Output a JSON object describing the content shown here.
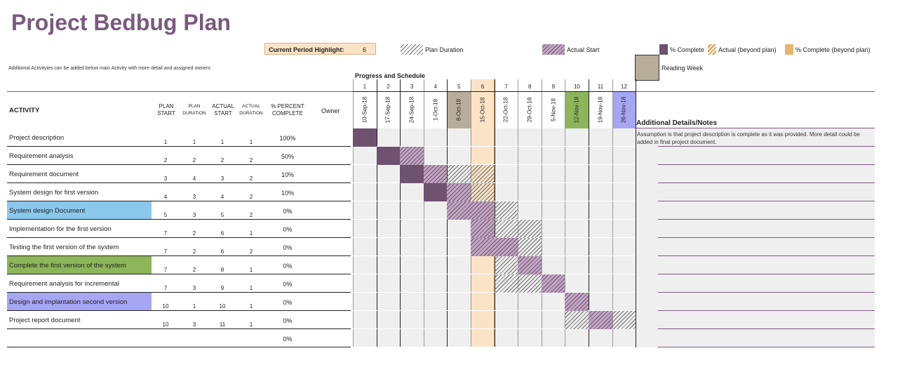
{
  "title": "Project Bedbug Plan",
  "note": "Additional Activityies can be added below main Activity with more detail and assigned owners",
  "current_period": {
    "label": "Current Period Highlight:",
    "value": "6"
  },
  "legend": {
    "plan_duration": "Plan Duration",
    "actual_start": "Actual Start",
    "pct_complete": "% Complete",
    "actual_beyond": "Actual (beyond plan)",
    "pct_beyond": "% Complete (beyond plan)",
    "reading_week": "Reading Week"
  },
  "progress_label": "Progress and Schedule",
  "headers": {
    "activity": "ACTIVITY",
    "plan_start": "PLAN START",
    "plan_duration": "PLAN DURATION",
    "actual_start": "ACTUAL START",
    "actual_duration": "ACTUAL DURATION",
    "pct_complete": "% PERCENT COMPLETE",
    "owner": "Owner",
    "notes": "Additional Details/Notes"
  },
  "weeks": [
    "1",
    "2",
    "3",
    "4",
    "5",
    "6",
    "7",
    "8",
    "9",
    "10",
    "11",
    "12"
  ],
  "dates": [
    "10-Sep-18",
    "17-Sep-18",
    "24-Sep-18",
    "1-Oct-18",
    "8-Oct-18",
    "15-Oct-18",
    "22-Oct-18",
    "29-Oct-18",
    "5-Nov-18",
    "12-Nov-18",
    "19-Nov-18",
    "26-Nov-18"
  ],
  "activities": [
    {
      "name": "Project description",
      "plan_start": "1",
      "plan_dur": "1",
      "act_start": "1",
      "act_dur": "1",
      "pct": "100%"
    },
    {
      "name": "Requirement analysis",
      "plan_start": "2",
      "plan_dur": "2",
      "act_start": "2",
      "act_dur": "2",
      "pct": "50%"
    },
    {
      "name": "Requirement document",
      "plan_start": "3",
      "plan_dur": "4",
      "act_start": "3",
      "act_dur": "2",
      "pct": "10%"
    },
    {
      "name": "System design for first version",
      "plan_start": "4",
      "plan_dur": "3",
      "act_start": "4",
      "act_dur": "2",
      "pct": "10%"
    },
    {
      "name": "System design Document",
      "plan_start": "5",
      "plan_dur": "3",
      "act_start": "5",
      "act_dur": "2",
      "pct": "0%"
    },
    {
      "name": "Implementation for the first version",
      "plan_start": "7",
      "plan_dur": "2",
      "act_start": "6",
      "act_dur": "1",
      "pct": "0%"
    },
    {
      "name": "Testing the first version of the system",
      "plan_start": "7",
      "plan_dur": "2",
      "act_start": "6",
      "act_dur": "2",
      "pct": "0%"
    },
    {
      "name": "Complete the first version of the system",
      "plan_start": "7",
      "plan_dur": "2",
      "act_start": "8",
      "act_dur": "1",
      "pct": "0%"
    },
    {
      "name": "Requirement analysis for incremental",
      "plan_start": "7",
      "plan_dur": "3",
      "act_start": "9",
      "act_dur": "1",
      "pct": "0%"
    },
    {
      "name": "Design and implantation second version",
      "plan_start": "10",
      "plan_dur": "1",
      "act_start": "10",
      "act_dur": "1",
      "pct": "0%"
    },
    {
      "name": "Project report document",
      "plan_start": "10",
      "plan_dur": "3",
      "act_start": "11",
      "act_dur": "1",
      "pct": "0%"
    },
    {
      "name": "",
      "plan_start": "",
      "plan_dur": "",
      "act_start": "",
      "act_dur": "",
      "pct": "0%"
    }
  ],
  "first_note": "Assumption is that project description is complete as it was provided. More detail could be added in final project document.",
  "colors": {
    "title": "#7a5a7e",
    "complete": "#6e5270",
    "highlight": "#fbe3c6",
    "reading_week": "#b8ad98",
    "blue_row": "#8ac8ec",
    "green_row": "#8db55a",
    "purple_row": "#a6a6f5"
  }
}
